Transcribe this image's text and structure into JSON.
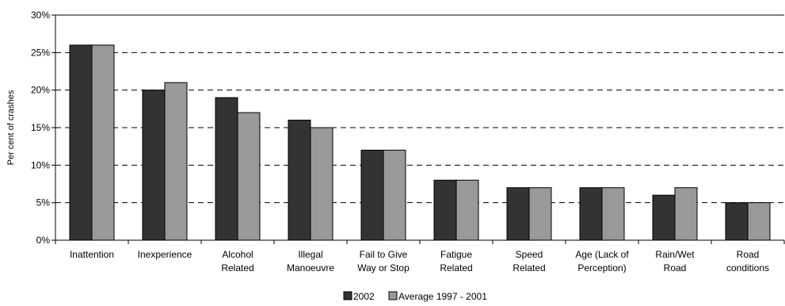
{
  "chart_data": {
    "type": "bar",
    "title": "",
    "xlabel": "",
    "ylabel": "Per cent of crashes",
    "ylim": [
      0,
      30
    ],
    "yticks": [
      0,
      5,
      10,
      15,
      20,
      25,
      30
    ],
    "ytick_labels": [
      "0%",
      "5%",
      "10%",
      "15%",
      "20%",
      "25%",
      "30%"
    ],
    "grid": "horizontal dashed",
    "legend_position": "bottom",
    "categories": [
      [
        "Inattention"
      ],
      [
        "Inexperience"
      ],
      [
        "Alcohol",
        "Related"
      ],
      [
        "Illegal",
        "Manoeuvre"
      ],
      [
        "Fail to Give",
        "Way or Stop"
      ],
      [
        "Fatigue",
        "Related"
      ],
      [
        "Speed",
        "Related"
      ],
      [
        "Age (Lack of",
        "Perception)"
      ],
      [
        "Rain/Wet",
        "Road"
      ],
      [
        "Road",
        "conditions"
      ]
    ],
    "series": [
      {
        "name": "2002",
        "color": "#333333",
        "values": [
          26,
          20,
          19,
          16,
          12,
          8,
          7,
          7,
          6,
          5
        ]
      },
      {
        "name": "Average 1997 - 2001",
        "color": "#999999",
        "values": [
          26,
          21,
          17,
          15,
          12,
          8,
          7,
          7,
          7,
          5
        ]
      }
    ]
  }
}
